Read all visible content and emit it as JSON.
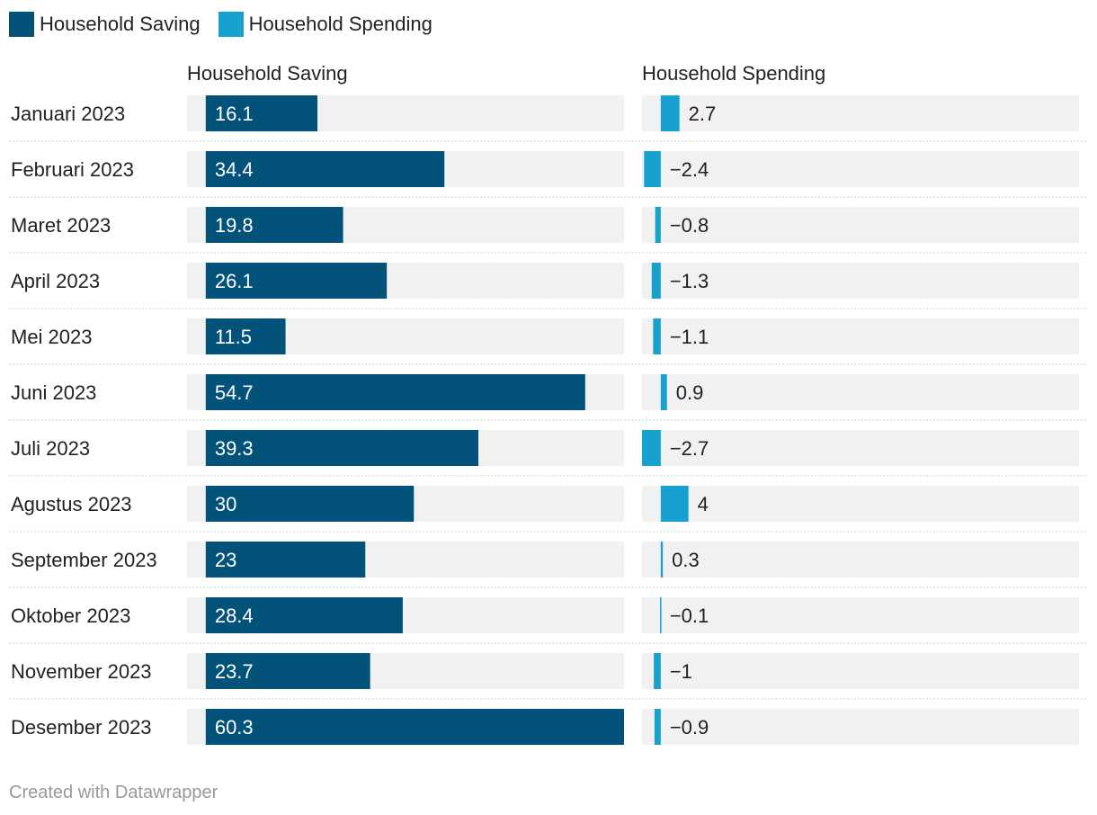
{
  "legend": [
    {
      "label": "Household Saving",
      "color": "#03527a"
    },
    {
      "label": "Household Spending",
      "color": "#17a1cf"
    }
  ],
  "colors": {
    "track": "#f1f1f1",
    "separator": "#d0d0d0"
  },
  "footer": {
    "credit": "Created with Datawrapper"
  },
  "chart_data": {
    "type": "bar",
    "title": "",
    "categories": [
      "Januari 2023",
      "Februari 2023",
      "Maret 2023",
      "April 2023",
      "Mei 2023",
      "Juni 2023",
      "Juli 2023",
      "Agustus 2023",
      "September 2023",
      "Oktober 2023",
      "November 2023",
      "Desember 2023"
    ],
    "series": [
      {
        "name": "Household Saving",
        "values": [
          16.1,
          34.4,
          19.8,
          26.1,
          11.5,
          54.7,
          39.3,
          30,
          23,
          28.4,
          23.7,
          60.3
        ],
        "labels": [
          "16.1",
          "34.4",
          "19.8",
          "26.1",
          "11.5",
          "54.7",
          "39.3",
          "30",
          "23",
          "28.4",
          "23.7",
          "60.3"
        ],
        "range": [
          -2.7,
          60.3
        ]
      },
      {
        "name": "Household Spending",
        "values": [
          2.7,
          -2.4,
          -0.8,
          -1.3,
          -1.1,
          0.9,
          -2.7,
          4,
          0.3,
          -0.1,
          -1,
          -0.9
        ],
        "labels": [
          "2.7",
          "−2.4",
          "−0.8",
          "−1.3",
          "−1.1",
          "0.9",
          "−2.7",
          "4",
          "0.3",
          "−0.1",
          "−1",
          "−0.9"
        ],
        "range": [
          -2.7,
          60.3
        ]
      }
    ]
  }
}
